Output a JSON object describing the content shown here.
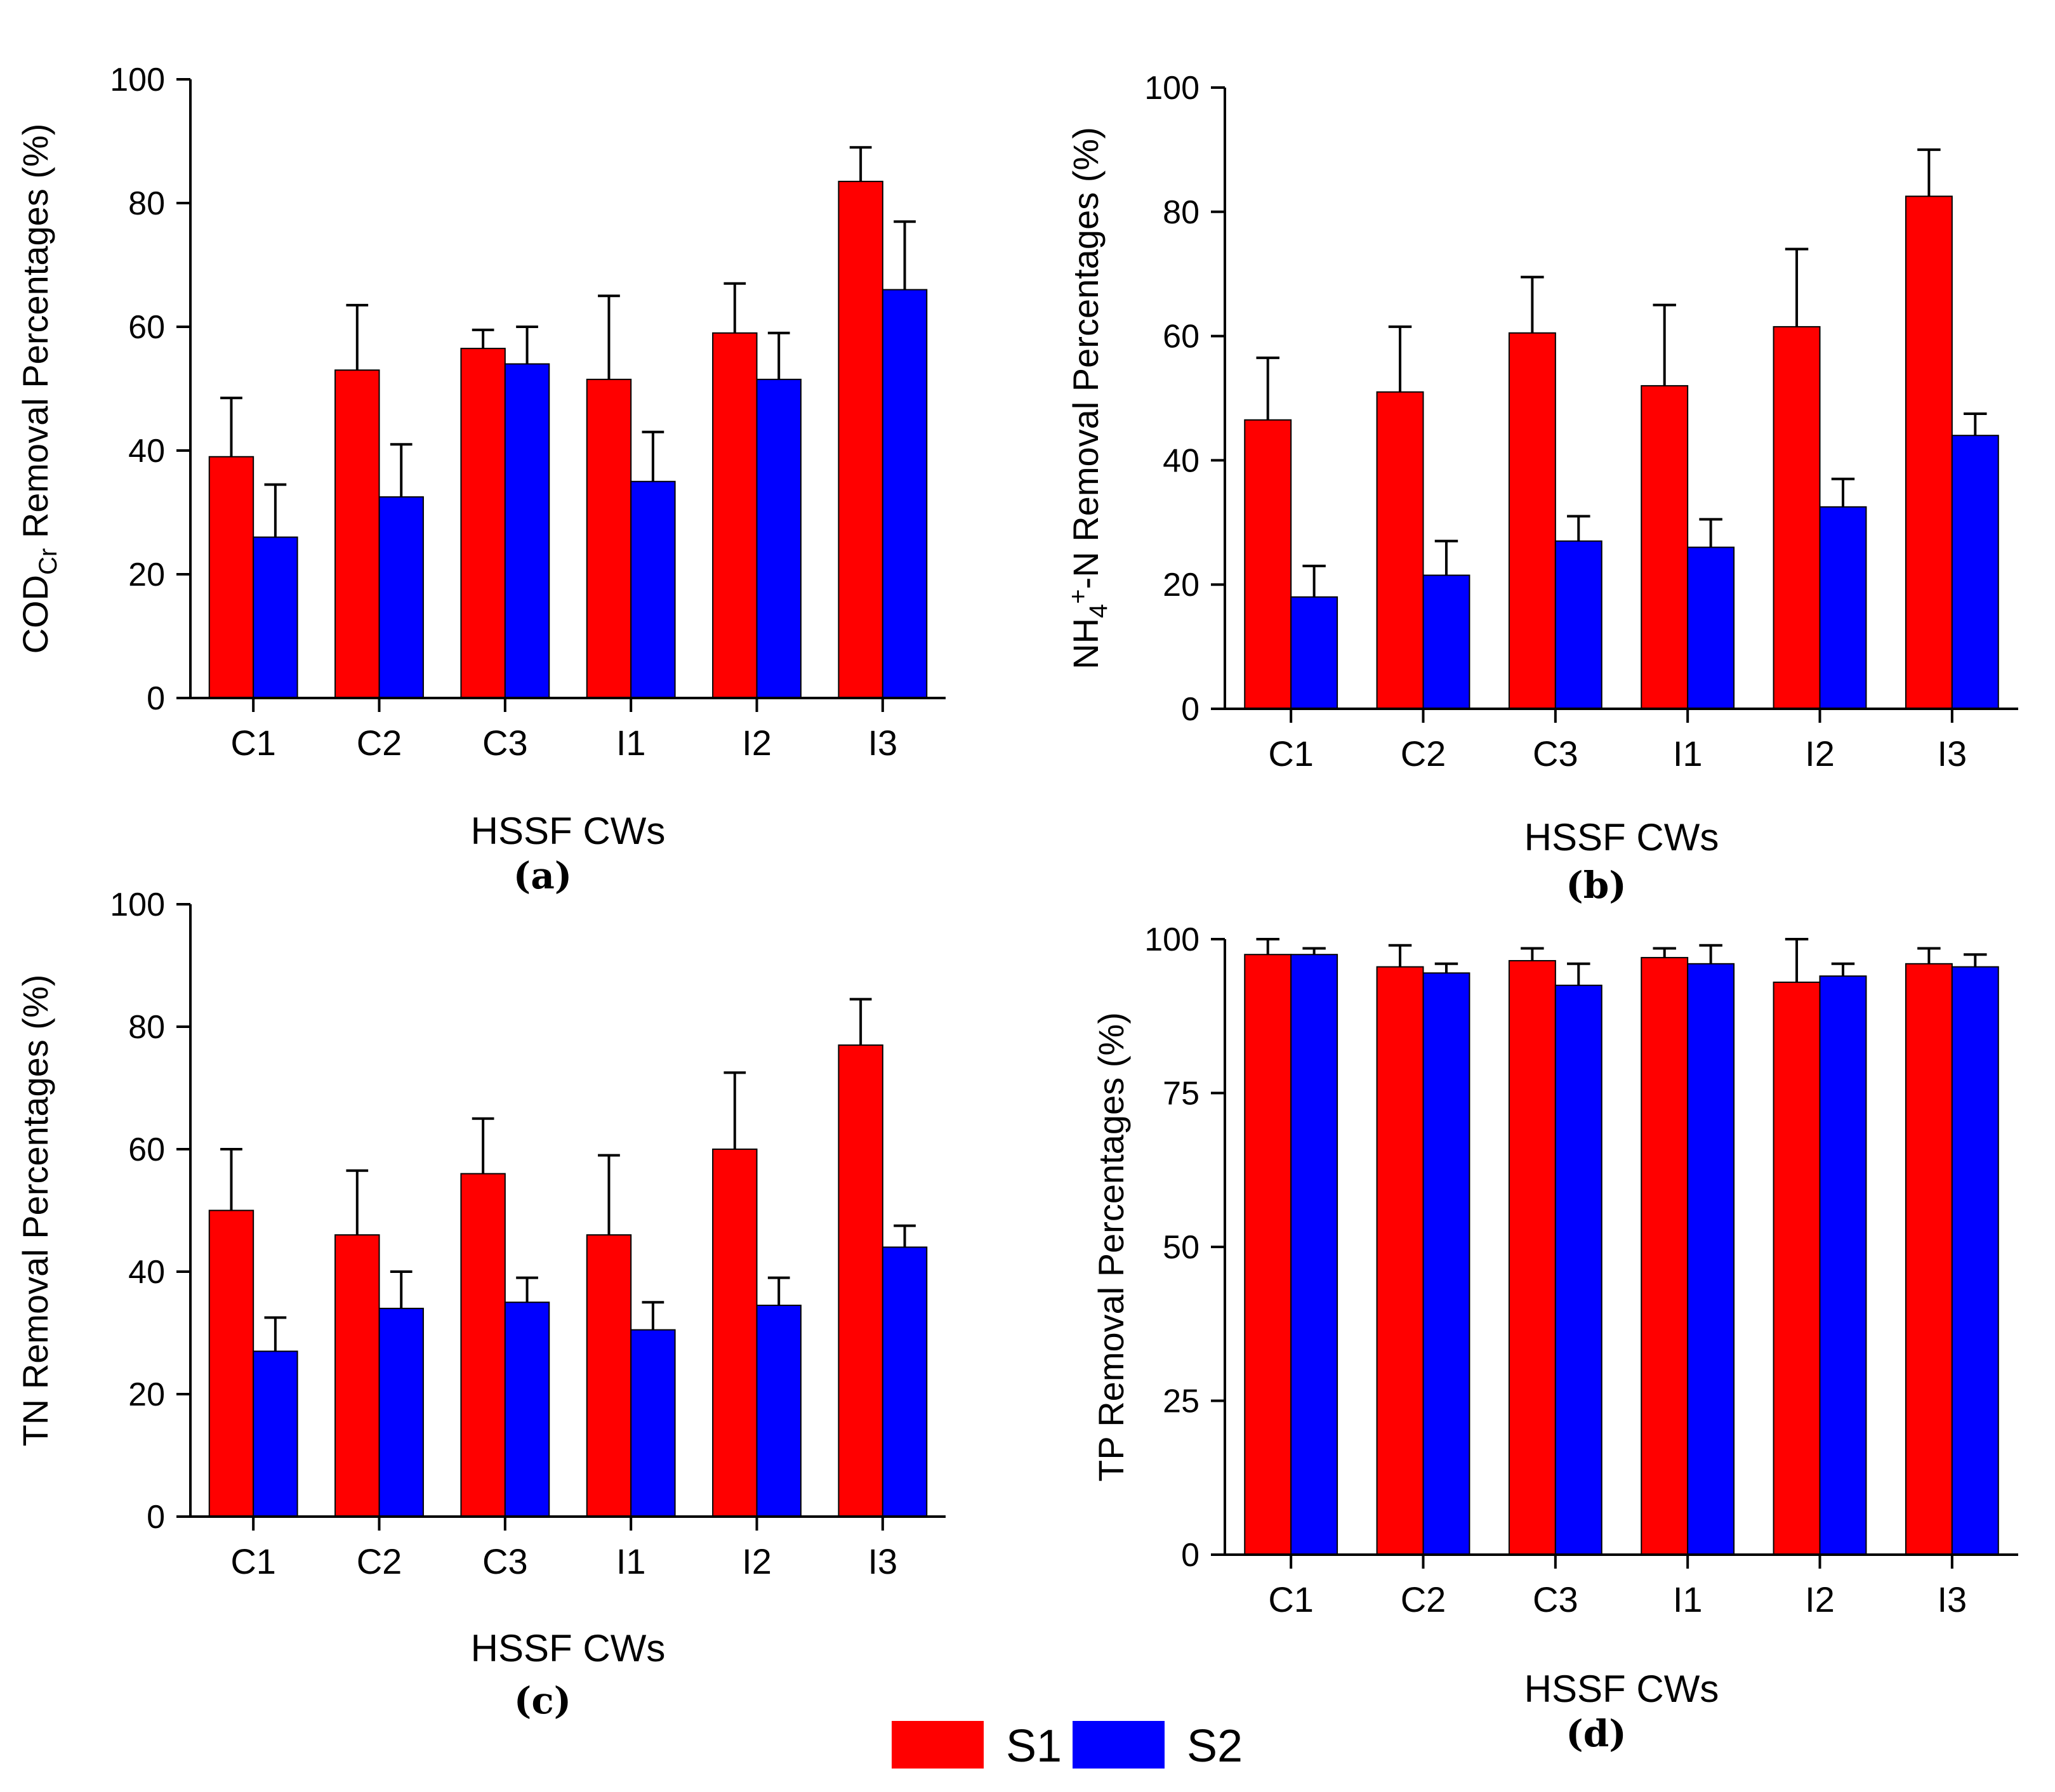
{
  "chart_data": [
    {
      "type": "bar",
      "panel": "(a)",
      "categories": [
        "C1",
        "C2",
        "C3",
        "I1",
        "I2",
        "I3"
      ],
      "series": [
        {
          "name": "S1",
          "color": "#ff0000",
          "values": [
            39,
            53,
            56.5,
            51.5,
            59,
            83.5
          ],
          "errors": [
            9.5,
            10.5,
            3,
            13.5,
            8,
            5.5
          ]
        },
        {
          "name": "S2",
          "color": "#0000ff",
          "values": [
            26,
            32.5,
            54,
            35,
            51.5,
            66
          ],
          "errors": [
            8.5,
            8.5,
            6,
            8,
            7.5,
            11
          ]
        }
      ],
      "ylabel": "COD",
      "ylabel_sub": "Cr",
      "ylabel_rest": " Removal Percentages (%)",
      "xlabel": "HSSF CWs",
      "ylim": [
        0,
        100
      ],
      "yticks": [
        0,
        20,
        40,
        60,
        80,
        100
      ]
    },
    {
      "type": "bar",
      "panel": "(b)",
      "categories": [
        "C1",
        "C2",
        "C3",
        "I1",
        "I2",
        "I3"
      ],
      "series": [
        {
          "name": "S1",
          "color": "#ff0000",
          "values": [
            46.5,
            51,
            60.5,
            52,
            61.5,
            82.5
          ],
          "errors": [
            10,
            10.5,
            9,
            13,
            12.5,
            7.5
          ]
        },
        {
          "name": "S2",
          "color": "#0000ff",
          "values": [
            18,
            21.5,
            27,
            26,
            32.5,
            44
          ],
          "errors": [
            5,
            5.5,
            4,
            4.5,
            4.5,
            3.5
          ]
        }
      ],
      "ylabel": "NH",
      "ylabel_sub": "4",
      "ylabel_sup": "+",
      "ylabel_rest": "-N Removal Percentages (%)",
      "xlabel": "HSSF CWs",
      "ylim": [
        0,
        100
      ],
      "yticks": [
        0,
        20,
        40,
        60,
        80,
        100
      ]
    },
    {
      "type": "bar",
      "panel": "(c)",
      "categories": [
        "C1",
        "C2",
        "C3",
        "I1",
        "I2",
        "I3"
      ],
      "series": [
        {
          "name": "S1",
          "color": "#ff0000",
          "values": [
            50,
            46,
            56,
            46,
            60,
            77
          ],
          "errors": [
            10,
            10.5,
            9,
            13,
            12.5,
            7.5
          ]
        },
        {
          "name": "S2",
          "color": "#0000ff",
          "values": [
            27,
            34,
            35,
            30.5,
            34.5,
            44
          ],
          "errors": [
            5.5,
            6,
            4,
            4.5,
            4.5,
            3.5
          ]
        }
      ],
      "ylabel": "TN Removal Percentages (%)",
      "xlabel": "HSSF CWs",
      "ylim": [
        0,
        100
      ],
      "yticks": [
        0,
        20,
        40,
        60,
        80,
        100
      ]
    },
    {
      "type": "bar",
      "panel": "(d)",
      "categories": [
        "C1",
        "C2",
        "C3",
        "I1",
        "I2",
        "I3"
      ],
      "series": [
        {
          "name": "S1",
          "color": "#ff0000",
          "values": [
            97.5,
            95.5,
            96.5,
            97,
            93,
            96
          ],
          "errors": [
            2.5,
            3.5,
            2,
            1.5,
            7,
            2.5
          ]
        },
        {
          "name": "S2",
          "color": "#0000ff",
          "values": [
            97.5,
            94.5,
            92.5,
            96,
            94,
            95.5
          ],
          "errors": [
            1,
            1.5,
            3.5,
            3,
            2,
            2
          ]
        }
      ],
      "ylabel": "TP Removal Percentages (%)",
      "xlabel": "HSSF CWs",
      "ylim": [
        0,
        100
      ],
      "yticks": [
        0,
        25,
        50,
        75,
        100
      ]
    }
  ],
  "legend": {
    "items": [
      {
        "label": "S1",
        "color": "#ff0000"
      },
      {
        "label": "S2",
        "color": "#0000ff"
      }
    ]
  }
}
